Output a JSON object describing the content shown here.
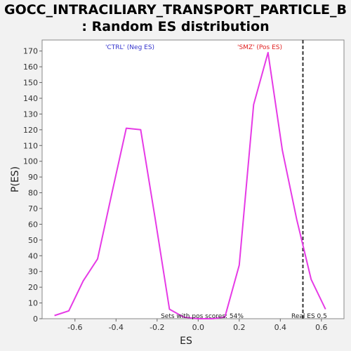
{
  "title_line1": "GOCC_INTRACILIARY_TRANSPORT_PARTICLE_B",
  "title_line2": ": Random ES distribution",
  "colors": {
    "line": "#e63ae6",
    "neg_label": "#3333cc",
    "pos_label": "#e02020",
    "real_es_line": "#333333",
    "plot_bg": "#ffffff",
    "page_bg": "#f2f2f2"
  },
  "chart_data": {
    "type": "line",
    "title": "GOCC_INTRACILIARY_TRANSPORT_PARTICLE_B : Random ES distribution",
    "xlabel": "ES",
    "ylabel": "P(ES)",
    "xlim": [
      -0.76,
      0.71
    ],
    "ylim": [
      0,
      177
    ],
    "x_ticks": [
      -0.6,
      -0.4,
      -0.2,
      0.0,
      0.2,
      0.4,
      0.6
    ],
    "x_tick_labels": [
      "-0.6",
      "-0.4",
      "-0.2",
      "0.0",
      "0.2",
      "0.4",
      "0.6"
    ],
    "y_ticks": [
      0,
      10,
      20,
      30,
      40,
      50,
      60,
      70,
      80,
      90,
      100,
      110,
      120,
      130,
      140,
      150,
      160,
      170
    ],
    "y_tick_labels": [
      "0",
      "10",
      "20",
      "30",
      "40",
      "50",
      "60",
      "70",
      "80",
      "90",
      "100",
      "110",
      "120",
      "130",
      "140",
      "150",
      "160",
      "170"
    ],
    "grid": false,
    "series": [
      {
        "x": [
          -0.7,
          -0.63,
          -0.56,
          -0.49,
          -0.42,
          -0.35,
          -0.28,
          -0.21,
          -0.14,
          -0.07,
          0.0,
          0.07,
          0.13,
          0.2,
          0.27,
          0.34,
          0.41,
          0.48,
          0.55,
          0.62
        ],
        "y": [
          2,
          5,
          24,
          38,
          80,
          121,
          120,
          64,
          6,
          1,
          0,
          0,
          1,
          34,
          136,
          169,
          107,
          63,
          25,
          6
        ]
      }
    ],
    "real_es": 0.51,
    "annotations": {
      "neg_label": "'CTRL' (Neg ES)",
      "pos_label": "'SMZ' (Pos ES)",
      "pos_fraction": "Sets with pos scores: 54%",
      "real_es_label": "Real ES 0.5"
    }
  }
}
